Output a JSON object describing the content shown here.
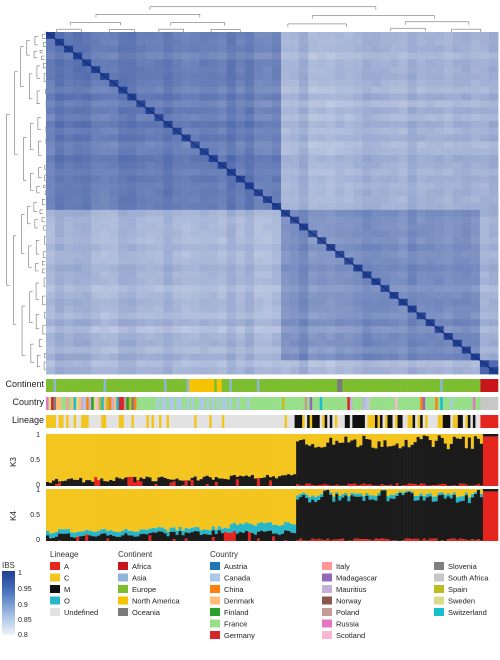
{
  "chart_data": {
    "type": "heatmap",
    "heatmap": {
      "scale_title": "IBS",
      "scale_ticks": [
        "1",
        "0.95",
        "0.9",
        "0.85",
        "0.8"
      ],
      "color_low": "#eef3fa",
      "color_high": "#1f3f94",
      "block_structure": [
        {
          "span": [
            0.0,
            0.53
          ],
          "level": 0.66
        },
        {
          "span": [
            0.53,
            0.96
          ],
          "level": 0.57
        },
        {
          "span": [
            0.96,
            1.0
          ],
          "level": 0.75
        }
      ]
    },
    "tracks": [
      {
        "name": "Continent",
        "label": "Continent"
      },
      {
        "name": "Country",
        "label": "Country"
      },
      {
        "name": "Lineage",
        "label": "Lineage"
      }
    ],
    "admixture": [
      {
        "label": "K3",
        "yticks": [
          "1",
          "0.5",
          "0"
        ],
        "components": [
          {
            "name": "yellow",
            "color": "#f4c51f"
          },
          {
            "name": "black",
            "color": "#1b1b1b"
          },
          {
            "name": "red",
            "color": "#e4261f"
          }
        ]
      },
      {
        "label": "K4",
        "yticks": [
          "1",
          "0.5",
          "0"
        ],
        "components": [
          {
            "name": "yellow",
            "color": "#f4c51f"
          },
          {
            "name": "cyan",
            "color": "#28b7c8"
          },
          {
            "name": "black",
            "color": "#1b1b1b"
          },
          {
            "name": "red",
            "color": "#e4261f"
          }
        ]
      }
    ],
    "legends": {
      "lineage": {
        "title": "Lineage",
        "items": [
          {
            "label": "A",
            "color": "#e4261f"
          },
          {
            "label": "C",
            "color": "#f4c51f"
          },
          {
            "label": "M",
            "color": "#111111"
          },
          {
            "label": "O",
            "color": "#28b7c8"
          },
          {
            "label": "Undefined",
            "color": "#e2e2e2"
          }
        ]
      },
      "continent": {
        "title": "Continent",
        "items": [
          {
            "label": "Africa",
            "color": "#c8161d"
          },
          {
            "label": "Asia",
            "color": "#8fb4d9"
          },
          {
            "label": "Europe",
            "color": "#7cbe2f"
          },
          {
            "label": "North America",
            "color": "#f5c300"
          },
          {
            "label": "Oceania",
            "color": "#7a7a7a"
          }
        ]
      },
      "country": {
        "title": "Country",
        "items": [
          {
            "label": "Austria",
            "color": "#1f77b4"
          },
          {
            "label": "Canada",
            "color": "#aec7e8"
          },
          {
            "label": "China",
            "color": "#ff7f0e"
          },
          {
            "label": "Denmark",
            "color": "#ffbb78"
          },
          {
            "label": "Finland",
            "color": "#2ca02c"
          },
          {
            "label": "France",
            "color": "#98df8a"
          },
          {
            "label": "Germany",
            "color": "#d62728"
          },
          {
            "label": "Italy",
            "color": "#ff9896"
          },
          {
            "label": "Madagascar",
            "color": "#9467bd"
          },
          {
            "label": "Mauritius",
            "color": "#c5b0d5"
          },
          {
            "label": "Norway",
            "color": "#8c564b"
          },
          {
            "label": "Poland",
            "color": "#c49c94"
          },
          {
            "label": "Russia",
            "color": "#e377c2"
          },
          {
            "label": "Scotland",
            "color": "#f7b6d2"
          },
          {
            "label": "Slovenia",
            "color": "#7f7f7f"
          },
          {
            "label": "South Africa",
            "color": "#c7c7c7"
          },
          {
            "label": "Spain",
            "color": "#bcbd22"
          },
          {
            "label": "Sweden",
            "color": "#dbdb8d"
          },
          {
            "label": "Switzerland",
            "color": "#17becf"
          }
        ]
      }
    },
    "legend_placement": "bottom"
  }
}
